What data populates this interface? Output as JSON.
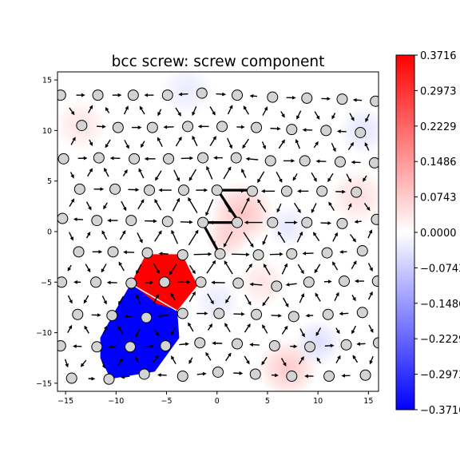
{
  "chart_data": {
    "type": "scatter",
    "title": "bcc screw: screw component",
    "xlabel": "",
    "ylabel": "",
    "xlim": [
      -15.8,
      16.0
    ],
    "ylim": [
      -15.8,
      15.8
    ],
    "xticks": [
      -15,
      -10,
      -5,
      0,
      5,
      10,
      15
    ],
    "yticks": [
      -15,
      -10,
      -5,
      0,
      5,
      10,
      15
    ],
    "xtick_labels": [
      "−15",
      "−10",
      "−5",
      "0",
      "5",
      "10",
      "15"
    ],
    "ytick_labels": [
      "−15",
      "−10",
      "−5",
      "0",
      "5",
      "10",
      "15"
    ],
    "colorbar": {
      "cmap": "bwr",
      "vmin": -0.3716,
      "vmax": 0.3716,
      "ticks": [
        0.3716,
        0.2973,
        0.2229,
        0.1486,
        0.0743,
        0.0,
        -0.0743,
        -0.1486,
        -0.2229,
        -0.2973,
        -0.3716
      ],
      "tick_labels": [
        "0.3716",
        "0.2973",
        "0.2229",
        "0.1486",
        "0.0743",
        "0.0000",
        "−0.0743",
        "−0.1486",
        "−0.2229",
        "−0.2973",
        "−0.3716"
      ]
    },
    "atom_color": "#d3d3d3",
    "regions": [
      {
        "value": 0.3716,
        "color": "#ff0000",
        "polygon": [
          [
            -7.0,
            -2.3
          ],
          [
            -3.5,
            -2.3
          ],
          [
            -2.0,
            -5.3
          ],
          [
            -4.0,
            -7.8
          ],
          [
            -6.0,
            -7.2
          ],
          [
            -8.5,
            -5.2
          ]
        ]
      },
      {
        "value": -0.3716,
        "color": "#0000ff",
        "polygon": [
          [
            -8.5,
            -5.2
          ],
          [
            -6.0,
            -7.2
          ],
          [
            -4.0,
            -7.8
          ],
          [
            -3.8,
            -10.5
          ],
          [
            -6.2,
            -13.8
          ],
          [
            -10.5,
            -14.5
          ],
          [
            -11.5,
            -12.5
          ],
          [
            -11.5,
            -10.5
          ],
          [
            -10.0,
            -7.8
          ]
        ]
      }
    ],
    "blobs": [
      {
        "x": 2.5,
        "y": 1.8,
        "r": 3.2,
        "value": 0.09
      },
      {
        "x": 1.0,
        "y": -0.5,
        "r": 2.2,
        "value": 0.07
      },
      {
        "x": 7.0,
        "y": -13.5,
        "r": 3.0,
        "value": 0.08
      },
      {
        "x": 14.0,
        "y": 3.5,
        "r": 2.8,
        "value": 0.05
      },
      {
        "x": -13.5,
        "y": 10.5,
        "r": 2.6,
        "value": 0.04
      },
      {
        "x": 4.5,
        "y": -5.0,
        "r": 2.5,
        "value": 0.04
      },
      {
        "x": 14.5,
        "y": 10.0,
        "r": 2.5,
        "value": -0.04
      },
      {
        "x": 10.0,
        "y": -11.0,
        "r": 2.4,
        "value": -0.05
      },
      {
        "x": 7.0,
        "y": 0.5,
        "r": 2.2,
        "value": -0.035
      },
      {
        "x": -3.0,
        "y": 14.0,
        "r": 2.6,
        "value": -0.03
      },
      {
        "x": 0.0,
        "y": -7.0,
        "r": 2.3,
        "value": -0.03
      }
    ],
    "atoms": [
      [
        -15.5,
        13.5
      ],
      [
        -11.8,
        13.5
      ],
      [
        -8.3,
        13.5
      ],
      [
        -4.9,
        13.5
      ],
      [
        -1.5,
        13.7
      ],
      [
        2.0,
        13.5
      ],
      [
        5.5,
        13.3
      ],
      [
        8.9,
        13.2
      ],
      [
        12.4,
        13.1
      ],
      [
        15.7,
        12.9
      ],
      [
        -13.4,
        10.5
      ],
      [
        -9.8,
        10.3
      ],
      [
        -6.4,
        10.3
      ],
      [
        -2.9,
        10.4
      ],
      [
        0.5,
        10.4
      ],
      [
        3.9,
        10.3
      ],
      [
        7.4,
        10.1
      ],
      [
        10.8,
        10.0
      ],
      [
        14.2,
        9.8
      ],
      [
        -15.2,
        7.2
      ],
      [
        -11.7,
        7.3
      ],
      [
        -8.2,
        7.2
      ],
      [
        -4.8,
        7.2
      ],
      [
        -1.4,
        7.3
      ],
      [
        1.9,
        7.3
      ],
      [
        5.3,
        7.0
      ],
      [
        8.7,
        7.0
      ],
      [
        12.2,
        6.9
      ],
      [
        15.6,
        6.8
      ],
      [
        -13.6,
        4.2
      ],
      [
        -10.1,
        4.2
      ],
      [
        -6.7,
        4.1
      ],
      [
        -3.3,
        4.1
      ],
      [
        0.0,
        4.1
      ],
      [
        3.5,
        4.0
      ],
      [
        6.9,
        4.0
      ],
      [
        10.4,
        4.0
      ],
      [
        13.8,
        3.9
      ],
      [
        -15.3,
        1.3
      ],
      [
        -11.9,
        1.1
      ],
      [
        -8.5,
        1.1
      ],
      [
        -4.9,
        1.0
      ],
      [
        -1.4,
        0.9
      ],
      [
        2.0,
        0.9
      ],
      [
        5.5,
        0.9
      ],
      [
        8.9,
        0.9
      ],
      [
        12.4,
        0.8
      ],
      [
        15.8,
        1.2
      ],
      [
        -13.7,
        -2.0
      ],
      [
        -10.3,
        -2.0
      ],
      [
        -6.9,
        -2.1
      ],
      [
        -3.4,
        -2.3
      ],
      [
        0.3,
        -2.2
      ],
      [
        4.1,
        -2.3
      ],
      [
        7.4,
        -2.2
      ],
      [
        10.9,
        -2.1
      ],
      [
        14.4,
        -1.9
      ],
      [
        -15.4,
        -5.0
      ],
      [
        -12.0,
        -5.0
      ],
      [
        -8.5,
        -5.1
      ],
      [
        -5.2,
        -5.0
      ],
      [
        -1.6,
        -5.0
      ],
      [
        2.1,
        -5.1
      ],
      [
        5.9,
        -5.4
      ],
      [
        9.1,
        -5.0
      ],
      [
        12.6,
        -4.9
      ],
      [
        15.9,
        -4.9
      ],
      [
        -13.8,
        -8.2
      ],
      [
        -10.4,
        -8.3
      ],
      [
        -7.0,
        -8.5
      ],
      [
        -3.4,
        -8.1
      ],
      [
        0.2,
        -8.1
      ],
      [
        3.9,
        -8.2
      ],
      [
        7.6,
        -8.4
      ],
      [
        11.0,
        -8.2
      ],
      [
        14.4,
        -8.0
      ],
      [
        -15.5,
        -11.3
      ],
      [
        -11.9,
        -11.4
      ],
      [
        -8.6,
        -11.4
      ],
      [
        -5.1,
        -11.3
      ],
      [
        -1.7,
        -11.0
      ],
      [
        2.0,
        -11.1
      ],
      [
        5.7,
        -11.3
      ],
      [
        9.2,
        -11.4
      ],
      [
        12.8,
        -11.2
      ],
      [
        16.0,
        -11.0
      ],
      [
        -14.4,
        -14.5
      ],
      [
        -10.7,
        -14.6
      ],
      [
        -7.2,
        -14.1
      ],
      [
        -3.4,
        -14.3
      ],
      [
        0.1,
        -13.9
      ],
      [
        3.8,
        -14.1
      ],
      [
        7.4,
        -14.3
      ],
      [
        11.1,
        -14.3
      ],
      [
        14.7,
        -14.2
      ]
    ],
    "big_arrows": [
      [
        3.1,
        4.1,
        0.3,
        4.1
      ],
      [
        0.2,
        3.9,
        2.0,
        1.2
      ],
      [
        2.2,
        0.9,
        -1.3,
        0.9
      ],
      [
        -1.4,
        0.8,
        0.2,
        -2.1
      ]
    ]
  }
}
